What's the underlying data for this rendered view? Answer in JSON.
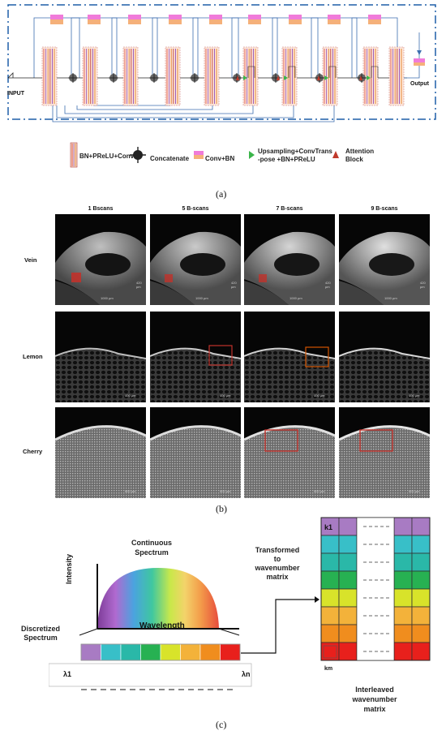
{
  "network": {
    "input_label": "INPUT",
    "output_label": "Output",
    "legend": {
      "bn": "BN+PReLU+Conv",
      "concat": "Concatenate",
      "convbn": "Conv+BN",
      "upsample_line1": "Upsampling+ConvTrans",
      "upsample_line2": "-pose +BN+PReLU",
      "attention_line1": "Attention",
      "attention_line2": "Block"
    },
    "colors": {
      "border": "#1f5fa8",
      "line": "#3d6fb0",
      "convbn_top": "#f07bd9",
      "convbn_bottom": "#f5b07a",
      "upsample": "#3bb54a",
      "attention": "#c0392b"
    },
    "panel_label": "(a)"
  },
  "scans": {
    "columns": [
      "1 Bscans",
      "5 B-scans",
      "7 B-scans",
      "9 B-scans"
    ],
    "rows": [
      "Vein",
      "Lemon",
      "Cherry"
    ],
    "scale_bars": {
      "vein": "1000 µm",
      "vein_depth": "420 µm",
      "lemon": "400 µm",
      "cherry": "900 µm"
    },
    "panel_label": "(b)"
  },
  "spectrum": {
    "continuous_title_1": "Continuous",
    "continuous_title_2": "Spectrum",
    "y_axis": "Intensity",
    "x_axis": "Wavelength",
    "discretized_1": "Discretized",
    "discretized_2": "Spectrum",
    "lambda_start": "λ1",
    "lambda_end": "λn",
    "transformed_1": "Transformed",
    "transformed_2": "to",
    "transformed_3": "wavenumber",
    "transformed_4": "matrix",
    "k_first": "k1",
    "k_last": "km",
    "interleaved_1": "Interleaved",
    "interleaved_2": "wavenumber",
    "interleaved_3": "matrix",
    "panel_label": "(c)",
    "bar_colors": [
      "#a87bc3",
      "#38bfc8",
      "#2ab8a8",
      "#27b152",
      "#d8e32a",
      "#f3b23a",
      "#f08d1e",
      "#e8201c"
    ],
    "matrix_rows": [
      "#a87bc3",
      "#38bfc8",
      "#2ab8a8",
      "#27b152",
      "#d8e32a",
      "#f3b23a",
      "#f08d1e",
      "#e8201c"
    ]
  }
}
